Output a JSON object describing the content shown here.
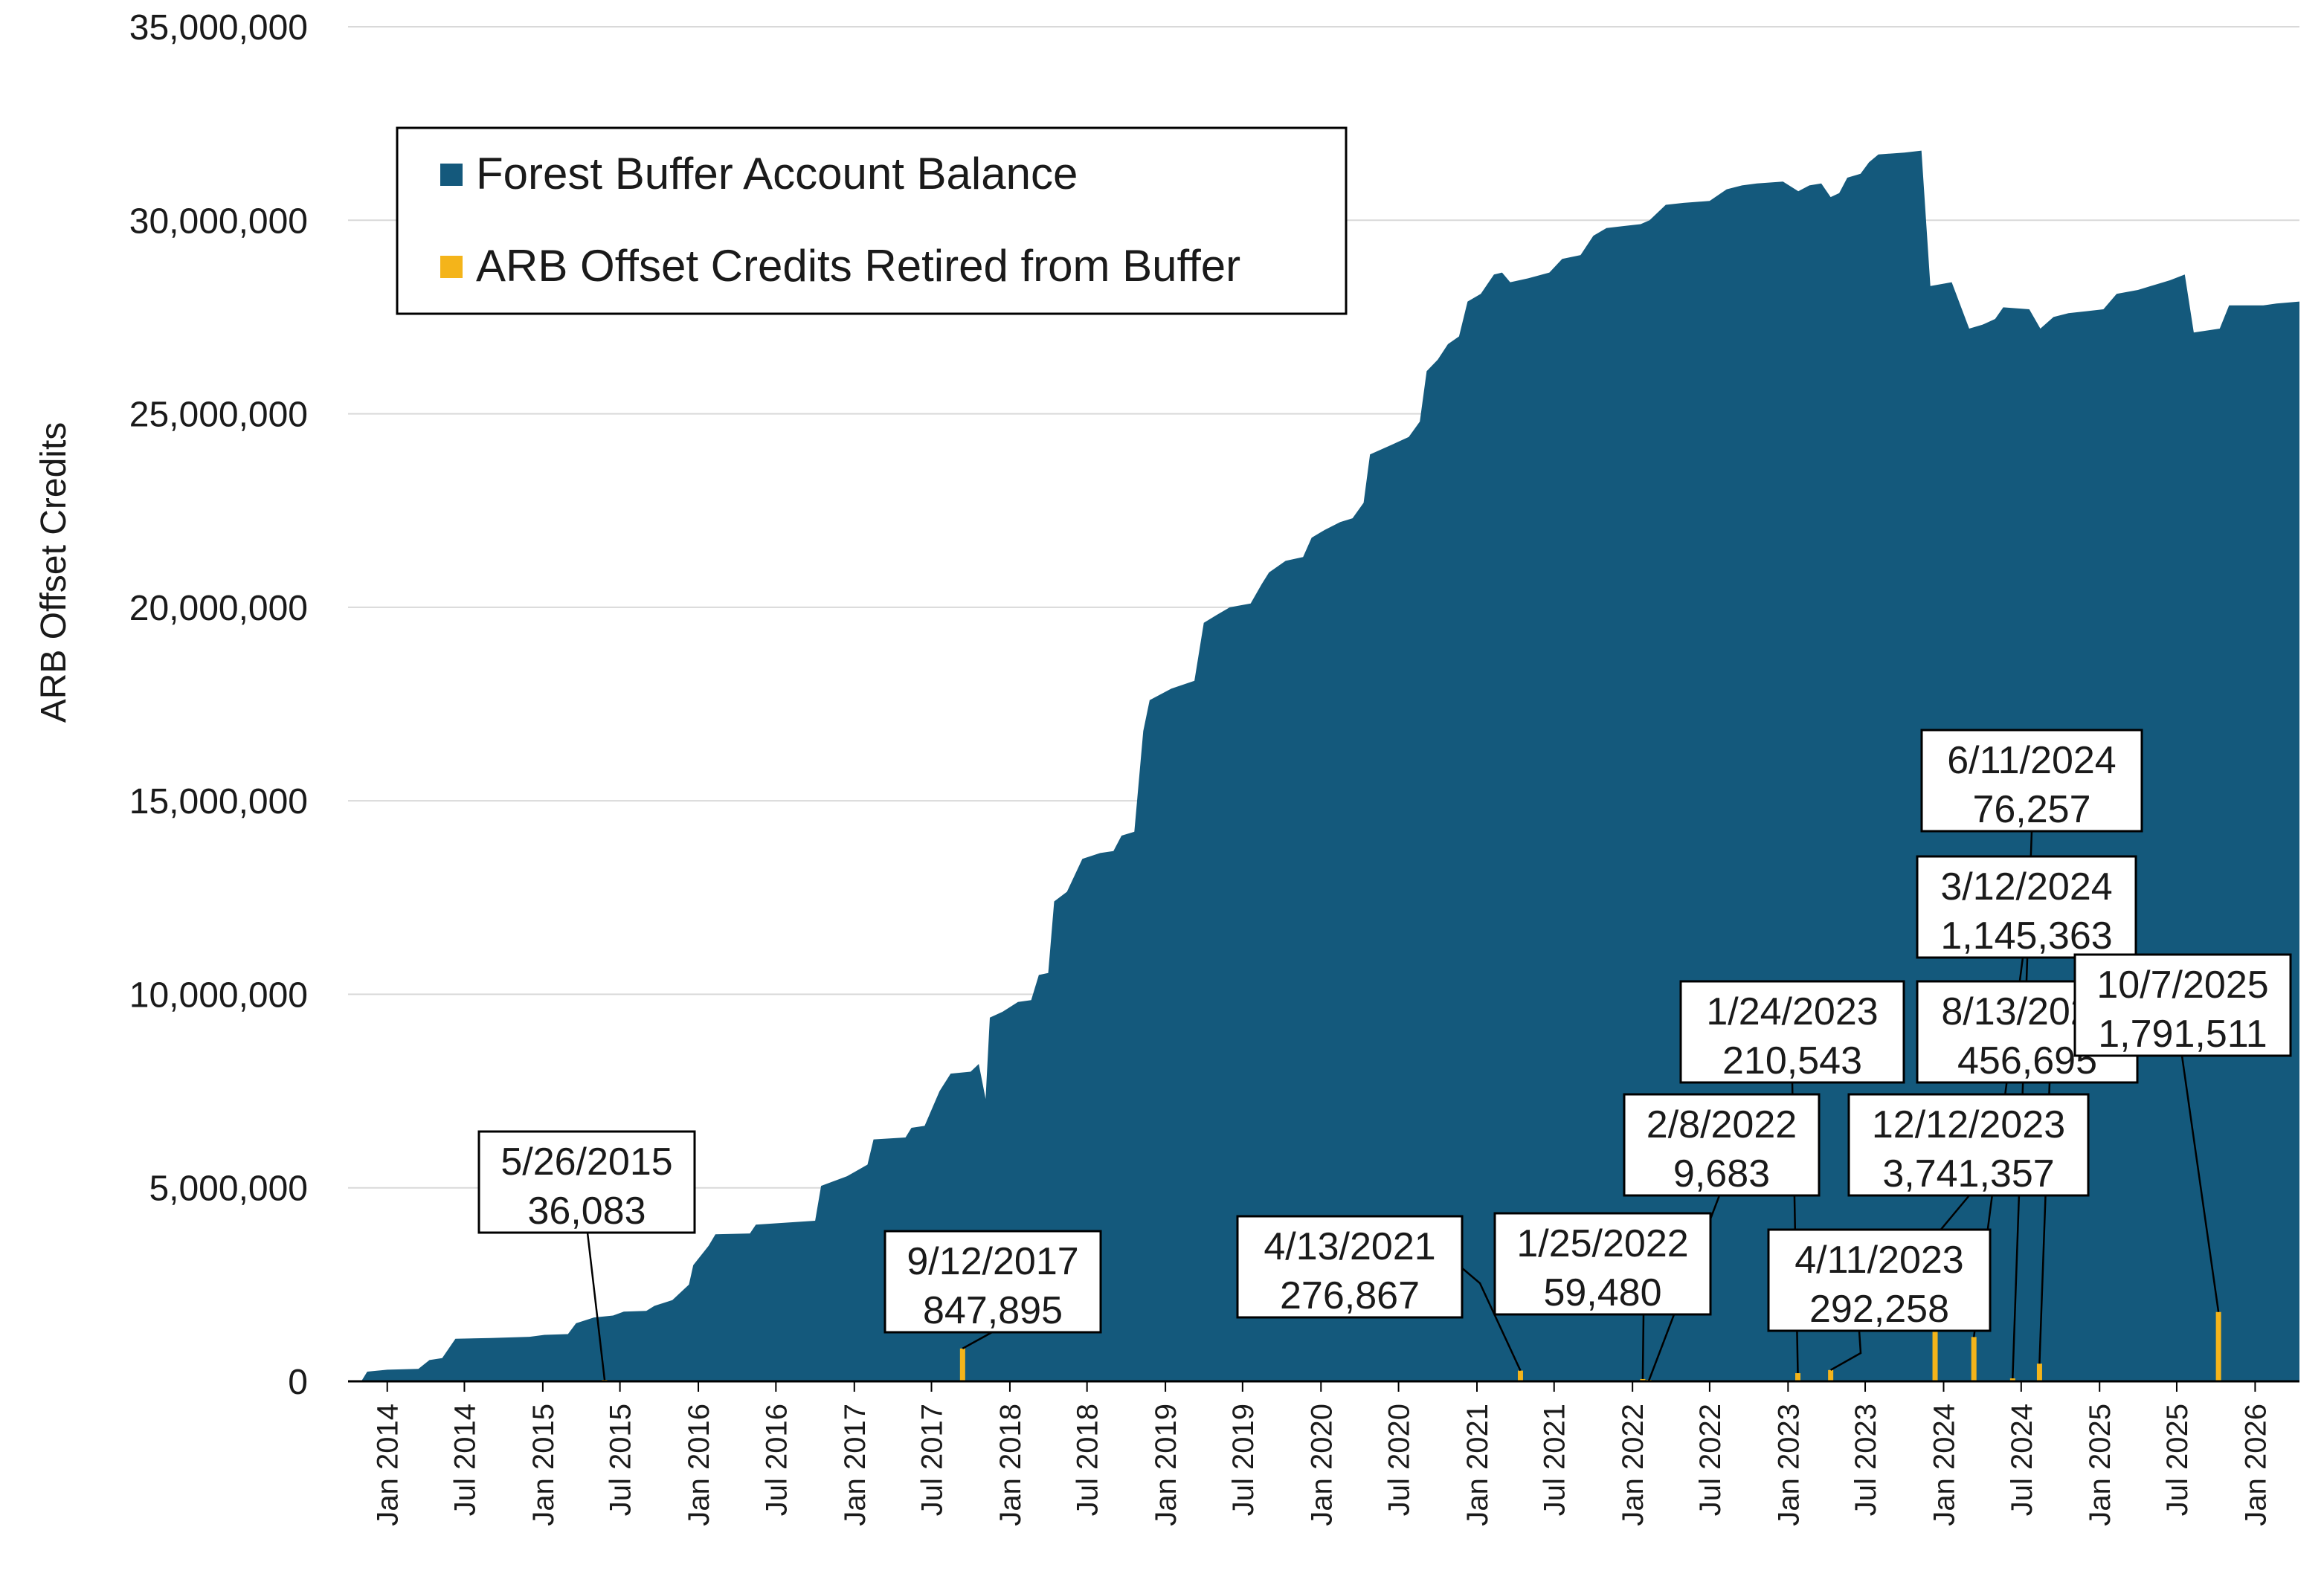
{
  "chart_data": {
    "type": "area",
    "title": "",
    "ylabel": "ARB Offset Credits",
    "xlabel": "",
    "ylim": [
      0,
      35000000
    ],
    "xlim": [
      "2013-10-01",
      "2026-04-15"
    ],
    "grid": true,
    "legend_position": "top-left",
    "y_ticks": [
      0,
      5000000,
      10000000,
      15000000,
      20000000,
      25000000,
      30000000,
      35000000
    ],
    "y_tick_labels": [
      "0",
      "5,000,000",
      "10,000,000",
      "15,000,000",
      "20,000,000",
      "25,000,000",
      "30,000,000",
      "35,000,000"
    ],
    "x_ticks": [
      "2014-01-01",
      "2014-07-01",
      "2015-01-01",
      "2015-07-01",
      "2016-01-01",
      "2016-07-01",
      "2017-01-01",
      "2017-07-01",
      "2018-01-01",
      "2018-07-01",
      "2019-01-01",
      "2019-07-01",
      "2020-01-01",
      "2020-07-01",
      "2021-01-01",
      "2021-07-01",
      "2022-01-01",
      "2022-07-01",
      "2023-01-01",
      "2023-07-01",
      "2024-01-01",
      "2024-07-01",
      "2025-01-01",
      "2025-07-01",
      "2026-01-01"
    ],
    "x_tick_labels": [
      "Jan 2014",
      "Jul 2014",
      "Jan 2015",
      "Jul 2015",
      "Jan 2016",
      "Jul 2016",
      "Jan 2017",
      "Jul 2017",
      "Jan 2018",
      "Jul 2018",
      "Jan 2019",
      "Jul 2019",
      "Jan 2020",
      "Jul 2020",
      "Jan 2021",
      "Jul 2021",
      "Jan 2022",
      "Jul 2022",
      "Jan 2023",
      "Jul 2023",
      "Jan 2024",
      "Jul 2024",
      "Jan 2025",
      "Jul 2025",
      "Jan 2026"
    ],
    "series": [
      {
        "name": "Forest Buffer Account Balance",
        "color": "#14597c",
        "points": [
          [
            "2013-11-01",
            0
          ],
          [
            "2013-11-15",
            250000
          ],
          [
            "2014-01-01",
            300000
          ],
          [
            "2014-03-15",
            320000
          ],
          [
            "2014-04-10",
            550000
          ],
          [
            "2014-05-10",
            600000
          ],
          [
            "2014-06-10",
            1100000
          ],
          [
            "2014-09-01",
            1120000
          ],
          [
            "2014-12-01",
            1150000
          ],
          [
            "2015-01-05",
            1200000
          ],
          [
            "2015-03-01",
            1220000
          ],
          [
            "2015-03-20",
            1500000
          ],
          [
            "2015-05-01",
            1650000
          ],
          [
            "2015-06-15",
            1700000
          ],
          [
            "2015-07-10",
            1800000
          ],
          [
            "2015-09-01",
            1820000
          ],
          [
            "2015-09-20",
            1950000
          ],
          [
            "2015-11-01",
            2100000
          ],
          [
            "2015-12-10",
            2500000
          ],
          [
            "2015-12-20",
            3000000
          ],
          [
            "2016-01-25",
            3500000
          ],
          [
            "2016-02-10",
            3800000
          ],
          [
            "2016-05-01",
            3820000
          ],
          [
            "2016-05-15",
            4050000
          ],
          [
            "2016-10-01",
            4150000
          ],
          [
            "2016-10-15",
            5050000
          ],
          [
            "2016-12-15",
            5300000
          ],
          [
            "2017-02-01",
            5600000
          ],
          [
            "2017-02-15",
            6250000
          ],
          [
            "2017-05-01",
            6300000
          ],
          [
            "2017-05-15",
            6550000
          ],
          [
            "2017-06-15",
            6600000
          ],
          [
            "2017-07-20",
            7500000
          ],
          [
            "2017-08-15",
            7950000
          ],
          [
            "2017-10-01",
            8000000
          ],
          [
            "2017-10-20",
            8200000
          ],
          [
            "2017-11-05",
            7300000
          ],
          [
            "2017-11-15",
            9400000
          ],
          [
            "2017-12-15",
            9550000
          ],
          [
            "2018-01-20",
            9800000
          ],
          [
            "2018-02-20",
            9850000
          ],
          [
            "2018-03-10",
            10500000
          ],
          [
            "2018-04-01",
            10550000
          ],
          [
            "2018-04-15",
            12400000
          ],
          [
            "2018-05-15",
            12650000
          ],
          [
            "2018-06-20",
            13500000
          ],
          [
            "2018-08-01",
            13650000
          ],
          [
            "2018-09-01",
            13700000
          ],
          [
            "2018-09-20",
            14100000
          ],
          [
            "2018-10-20",
            14200000
          ],
          [
            "2018-11-10",
            16800000
          ],
          [
            "2018-11-25",
            17600000
          ],
          [
            "2019-01-15",
            17900000
          ],
          [
            "2019-03-10",
            18100000
          ],
          [
            "2019-04-01",
            19600000
          ],
          [
            "2019-05-01",
            19800000
          ],
          [
            "2019-06-01",
            20000000
          ],
          [
            "2019-07-20",
            20100000
          ],
          [
            "2019-08-15",
            20600000
          ],
          [
            "2019-09-01",
            20900000
          ],
          [
            "2019-10-10",
            21200000
          ],
          [
            "2019-11-20",
            21300000
          ],
          [
            "2019-12-10",
            21800000
          ],
          [
            "2020-01-10",
            22000000
          ],
          [
            "2020-02-15",
            22200000
          ],
          [
            "2020-03-15",
            22300000
          ],
          [
            "2020-04-10",
            22700000
          ],
          [
            "2020-04-25",
            23950000
          ],
          [
            "2020-06-15",
            24200000
          ],
          [
            "2020-07-25",
            24400000
          ],
          [
            "2020-08-20",
            24800000
          ],
          [
            "2020-09-05",
            26100000
          ],
          [
            "2020-10-01",
            26400000
          ],
          [
            "2020-10-25",
            26800000
          ],
          [
            "2020-11-20",
            27000000
          ],
          [
            "2020-12-10",
            27900000
          ],
          [
            "2021-01-10",
            28100000
          ],
          [
            "2021-02-10",
            28600000
          ],
          [
            "2021-03-01",
            28650000
          ],
          [
            "2021-03-20",
            28400000
          ],
          [
            "2021-05-01",
            28500000
          ],
          [
            "2021-06-20",
            28650000
          ],
          [
            "2021-07-20",
            29000000
          ],
          [
            "2021-09-01",
            29100000
          ],
          [
            "2021-10-01",
            29600000
          ],
          [
            "2021-11-01",
            29800000
          ],
          [
            "2021-12-10",
            29850000
          ],
          [
            "2022-01-20",
            29900000
          ],
          [
            "2022-02-10",
            30000000
          ],
          [
            "2022-03-20",
            30400000
          ],
          [
            "2022-05-01",
            30450000
          ],
          [
            "2022-07-01",
            30500000
          ],
          [
            "2022-08-10",
            30800000
          ],
          [
            "2022-09-15",
            30900000
          ],
          [
            "2022-10-20",
            30950000
          ],
          [
            "2022-12-20",
            31000000
          ],
          [
            "2023-01-25",
            30750000
          ],
          [
            "2023-02-20",
            30900000
          ],
          [
            "2023-03-20",
            30950000
          ],
          [
            "2023-04-11",
            30600000
          ],
          [
            "2023-05-01",
            30700000
          ],
          [
            "2023-05-20",
            31100000
          ],
          [
            "2023-06-20",
            31200000
          ],
          [
            "2023-07-10",
            31500000
          ],
          [
            "2023-08-01",
            31700000
          ],
          [
            "2023-10-01",
            31750000
          ],
          [
            "2023-11-10",
            31800000
          ],
          [
            "2023-12-01",
            28300000
          ],
          [
            "2024-01-20",
            28400000
          ],
          [
            "2024-03-01",
            27200000
          ],
          [
            "2024-04-01",
            27300000
          ],
          [
            "2024-05-01",
            27450000
          ],
          [
            "2024-05-20",
            27750000
          ],
          [
            "2024-07-20",
            27700000
          ],
          [
            "2024-08-15",
            27200000
          ],
          [
            "2024-09-15",
            27500000
          ],
          [
            "2024-10-20",
            27600000
          ],
          [
            "2024-12-01",
            27650000
          ],
          [
            "2025-01-10",
            27700000
          ],
          [
            "2025-02-10",
            28100000
          ],
          [
            "2025-04-01",
            28200000
          ],
          [
            "2025-05-01",
            28300000
          ],
          [
            "2025-06-15",
            28450000
          ],
          [
            "2025-07-20",
            28600000
          ],
          [
            "2025-08-10",
            27100000
          ],
          [
            "2025-10-10",
            27200000
          ],
          [
            "2025-11-01",
            27800000
          ],
          [
            "2026-01-20",
            27800000
          ],
          [
            "2026-02-20",
            27850000
          ],
          [
            "2026-04-15",
            27900000
          ]
        ]
      },
      {
        "name": "ARB Offset Credits Retired from Buffer",
        "color": "#f4b41a",
        "points": [
          [
            "2015-05-26",
            36083
          ],
          [
            "2017-09-12",
            847895
          ],
          [
            "2021-04-13",
            276867
          ],
          [
            "2022-01-25",
            59480
          ],
          [
            "2022-02-08",
            9683
          ],
          [
            "2023-01-24",
            210543
          ],
          [
            "2023-04-11",
            292258
          ],
          [
            "2023-12-12",
            3741357
          ],
          [
            "2024-03-12",
            1145363
          ],
          [
            "2024-06-11",
            76257
          ],
          [
            "2024-08-13",
            456695
          ],
          [
            "2025-10-07",
            1791511
          ]
        ]
      }
    ],
    "annotations": [
      {
        "date_label": "5/26/2015",
        "value_label": "36,083",
        "x": "2015-05-26",
        "y": 36083
      },
      {
        "date_label": "9/12/2017",
        "value_label": "847,895",
        "x": "2017-09-12",
        "y": 847895
      },
      {
        "date_label": "4/13/2021",
        "value_label": "276,867",
        "x": "2021-04-13",
        "y": 276867
      },
      {
        "date_label": "1/25/2022",
        "value_label": "59,480",
        "x": "2022-01-25",
        "y": 59480
      },
      {
        "date_label": "2/8/2022",
        "value_label": "9,683",
        "x": "2022-02-08",
        "y": 9683
      },
      {
        "date_label": "1/24/2023",
        "value_label": "210,543",
        "x": "2023-01-24",
        "y": 210543
      },
      {
        "date_label": "4/11/2023",
        "value_label": "292,258",
        "x": "2023-04-11",
        "y": 292258
      },
      {
        "date_label": "12/12/2023",
        "value_label": "3,741,357",
        "x": "2023-12-12",
        "y": 3741357
      },
      {
        "date_label": "3/12/2024",
        "value_label": "1,145,363",
        "x": "2024-03-12",
        "y": 1145363
      },
      {
        "date_label": "6/11/2024",
        "value_label": "76,257",
        "x": "2024-06-11",
        "y": 76257
      },
      {
        "date_label": "8/13/2024",
        "value_label": "456,695",
        "x": "2024-08-13",
        "y": 456695
      },
      {
        "date_label": "10/7/2025",
        "value_label": "1,791,511",
        "x": "2025-10-07",
        "y": 1791511
      }
    ]
  }
}
